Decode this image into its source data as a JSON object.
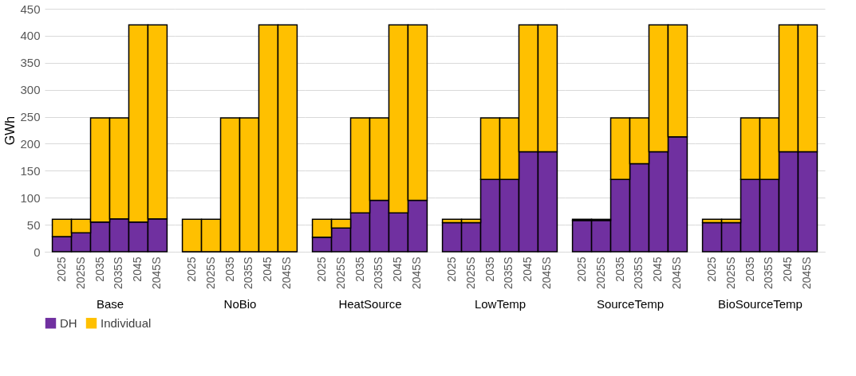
{
  "chart_data": [
    {
      "type": "bar",
      "stacked": true,
      "xlabel": "Base",
      "ylabel": "GWh",
      "categories": [
        "2025",
        "2025S",
        "2035",
        "2035S",
        "2045",
        "2045S"
      ],
      "ylim": [
        0,
        450
      ],
      "yticks": [
        0,
        50,
        100,
        150,
        200,
        250,
        300,
        350,
        400,
        450
      ],
      "grid": "y",
      "legend": "bottom",
      "series": [
        {
          "name": "DH",
          "color": "#7030a0",
          "values": [
            28,
            35,
            55,
            61,
            55,
            61
          ]
        },
        {
          "name": "Individual",
          "color": "#ffc000",
          "values": [
            32,
            25,
            193,
            187,
            365,
            359
          ]
        }
      ]
    },
    {
      "type": "bar",
      "stacked": true,
      "xlabel": "NoBio",
      "categories": [
        "2025",
        "2025S",
        "2035",
        "2035S",
        "2045",
        "2045S"
      ],
      "ylim": [
        0,
        450
      ],
      "yticks": [
        0,
        50,
        100,
        150,
        200,
        250,
        300,
        350,
        400,
        450
      ],
      "grid": "y",
      "tick_labels": "x",
      "series": [
        {
          "name": "DH",
          "color": "#7030a0",
          "values": [
            0,
            0,
            0,
            0,
            0,
            0
          ]
        },
        {
          "name": "Individual",
          "color": "#ffc000",
          "values": [
            60,
            60,
            248,
            248,
            420,
            420
          ]
        }
      ]
    },
    {
      "type": "bar",
      "stacked": true,
      "xlabel": "HeatSource",
      "categories": [
        "2025",
        "2025S",
        "2035",
        "2035S",
        "2045",
        "2045S"
      ],
      "ylim": [
        0,
        450
      ],
      "yticks": [
        0,
        50,
        100,
        150,
        200,
        250,
        300,
        350,
        400,
        450
      ],
      "grid": "y",
      "tick_labels": "x",
      "series": [
        {
          "name": "DH",
          "color": "#7030a0",
          "values": [
            27,
            44,
            72,
            95,
            72,
            95
          ]
        },
        {
          "name": "Individual",
          "color": "#ffc000",
          "values": [
            33,
            16,
            176,
            153,
            348,
            325
          ]
        }
      ]
    },
    {
      "type": "bar",
      "stacked": true,
      "xlabel": "LowTemp",
      "categories": [
        "2025",
        "2025S",
        "2035",
        "2035S",
        "2045",
        "2045S"
      ],
      "ylim": [
        0,
        450
      ],
      "yticks": [
        0,
        50,
        100,
        150,
        200,
        250,
        300,
        350,
        400,
        450
      ],
      "grid": "y",
      "tick_labels": "x",
      "series": [
        {
          "name": "DH",
          "color": "#7030a0",
          "values": [
            54,
            54,
            134,
            134,
            185,
            185
          ]
        },
        {
          "name": "Individual",
          "color": "#ffc000",
          "values": [
            6,
            6,
            114,
            114,
            235,
            235
          ]
        }
      ]
    },
    {
      "type": "bar",
      "stacked": true,
      "xlabel": "SourceTemp",
      "categories": [
        "2025",
        "2025S",
        "2035",
        "2035S",
        "2045",
        "2045S"
      ],
      "ylim": [
        0,
        450
      ],
      "yticks": [
        0,
        50,
        100,
        150,
        200,
        250,
        300,
        350,
        400,
        450
      ],
      "grid": "y",
      "tick_labels": "x",
      "series": [
        {
          "name": "DH",
          "color": "#7030a0",
          "values": [
            58,
            58,
            134,
            163,
            185,
            213
          ]
        },
        {
          "name": "Individual",
          "color": "#ffc000",
          "values": [
            2,
            2,
            114,
            85,
            235,
            207
          ]
        }
      ]
    },
    {
      "type": "bar",
      "stacked": true,
      "xlabel": "BioSourceTemp",
      "categories": [
        "2025",
        "2025S",
        "2035",
        "2035S",
        "2045",
        "2045S"
      ],
      "ylim": [
        0,
        450
      ],
      "yticks": [
        0,
        50,
        100,
        150,
        200,
        250,
        300,
        350,
        400,
        450
      ],
      "grid": "y",
      "tick_labels": "x",
      "series": [
        {
          "name": "DH",
          "color": "#7030a0",
          "values": [
            54,
            54,
            134,
            134,
            185,
            185
          ]
        },
        {
          "name": "Individual",
          "color": "#ffc000",
          "values": [
            6,
            6,
            114,
            114,
            235,
            235
          ]
        }
      ]
    }
  ]
}
